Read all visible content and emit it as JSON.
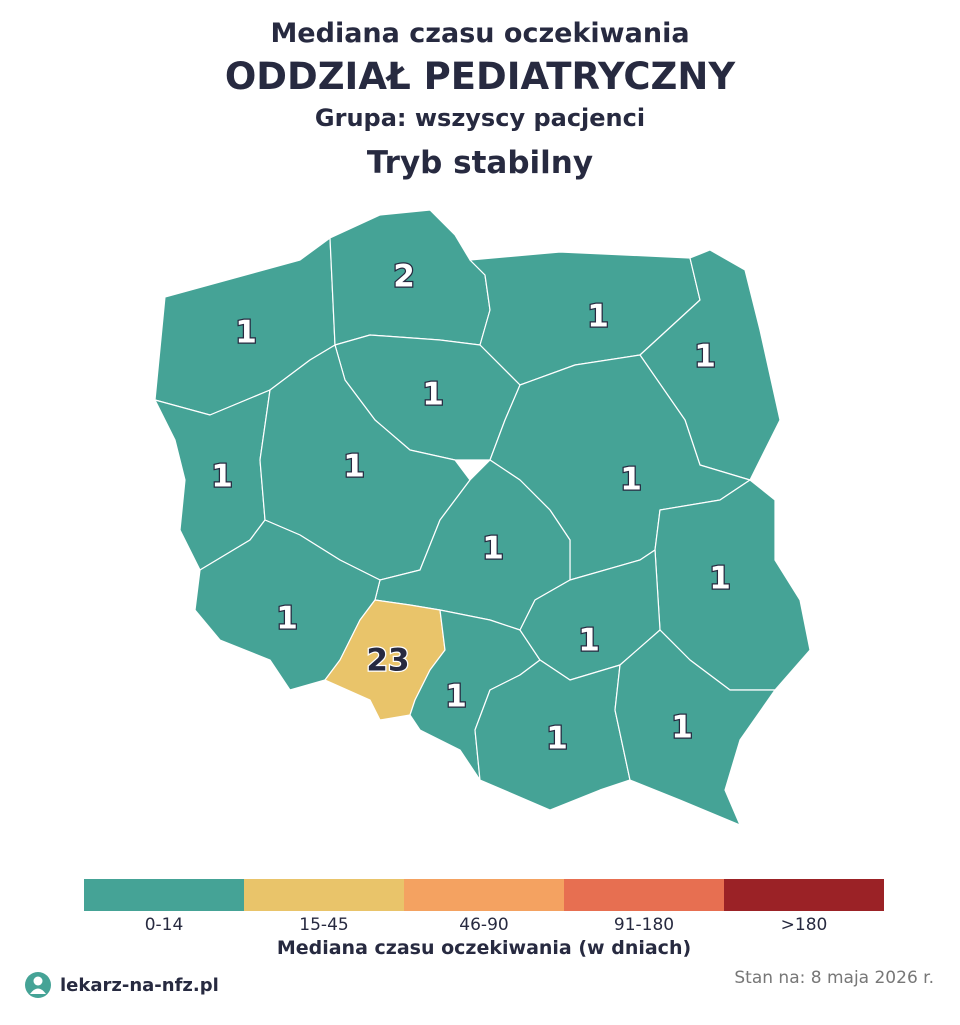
{
  "header": {
    "lines": [
      "Mediana czasu oczekiwania",
      "ODDZIAŁ PEDIATRYCZNY",
      "Grupa: wszyscy pacjenci",
      "Tryb stabilny"
    ]
  },
  "regions": [
    {
      "value": 1,
      "color": "#45a396"
    },
    {
      "value": 2,
      "color": "#45a396"
    },
    {
      "value": 1,
      "color": "#45a396"
    },
    {
      "value": 1,
      "color": "#45a396"
    },
    {
      "value": 1,
      "color": "#45a396"
    },
    {
      "value": 1,
      "color": "#45a396"
    },
    {
      "value": 1,
      "color": "#45a396"
    },
    {
      "value": 1,
      "color": "#45a396"
    },
    {
      "value": 1,
      "color": "#45a396"
    },
    {
      "value": 1,
      "color": "#45a396"
    },
    {
      "value": 1,
      "color": "#45a396"
    },
    {
      "value": 23,
      "color": "#e9c46a"
    },
    {
      "value": 1,
      "color": "#45a396"
    },
    {
      "value": 1,
      "color": "#45a396"
    },
    {
      "value": 1,
      "color": "#45a396"
    },
    {
      "value": 1,
      "color": "#45a396"
    }
  ],
  "legend": {
    "title": "Mediana czasu oczekiwania (w dniach)",
    "items": [
      {
        "label": "0-14",
        "color": "#45a396"
      },
      {
        "label": "15-45",
        "color": "#e9c46a"
      },
      {
        "label": "46-90",
        "color": "#f4a261"
      },
      {
        "label": "91-180",
        "color": "#e76f51"
      },
      {
        "label": ">180",
        "color": "#9b2226"
      }
    ]
  },
  "footer": {
    "brand": "lekarz-na-nfz.pl",
    "date": "Stan na: 8 maja 2026 r."
  }
}
